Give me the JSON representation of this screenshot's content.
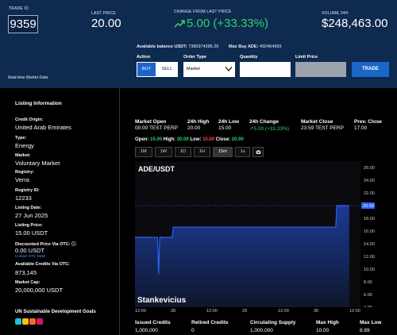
{
  "header": {
    "trade_id_label": "TRADE ID",
    "trade_id": "9359",
    "last_price_label": "LAST PRICE",
    "last_price": "20.00",
    "change_label": "CHANGE FROM LAST PRICE",
    "change_value": "5.00 (+33.33%)",
    "volume_label": "VOLUME 24H",
    "volume_value": "$248,463.00",
    "balance_label": "Available balance USDT:",
    "balance_value": "7386974385.26",
    "max_buy_label": "Max Buy ADE:",
    "max_buy_value": "492464959",
    "action_label": "Action",
    "buy_label": "BUY",
    "sell_label": "SELL",
    "order_type_label": "Order Type",
    "order_type_value": "Market",
    "quantity_label": "Quantity",
    "limit_price_label": "Limit Price",
    "trade_button": "TRADE",
    "realtime_label": "Real-time Market Data:",
    "accent_color": "#1b66c9",
    "positive_color": "#2fd16b"
  },
  "sidebar": {
    "title": "Listing Information",
    "credit_origin_label": "Credit Origin:",
    "credit_origin": "United Arab Emirates",
    "type_label": "Type:",
    "type": "Energy",
    "market_label": "Market:",
    "market": "Voluntary Market",
    "registry_label": "Registry:",
    "registry": "Verra",
    "registry_id_label": "Registry ID:",
    "registry_id": "12233",
    "listing_date_label": "Listing Date:",
    "listing_date": "27 Jun 2025",
    "listing_price_label": "Listing Price:",
    "listing_price": "15.00 USDT",
    "discounted_label": "Discounted Price Via OTC:",
    "discounted_value": "0.00 USDT",
    "otc_link": "Contact OTC Desk",
    "otc_credits_label": "Available Credits Via OTC:",
    "otc_credits": "873,145",
    "market_cap_label": "Market Cap:",
    "market_cap": "20,000,000 USDT",
    "sdg_title": "UN Sustainable Development Goals",
    "sdg_colors": [
      "#26bde2",
      "#fcc30b",
      "#fd6925",
      "#dd1367"
    ]
  },
  "market": {
    "open_label": "Market Open",
    "open_value": "00:00 TEST PERP",
    "high_label": "24h High",
    "high_value": "20.00",
    "low_label": "24h Low",
    "low_value": "15.00",
    "change_label": "24h Change",
    "change_value": "5.00 (+33.33%)",
    "close_label": "Market Close",
    "close_value": "23:59 TEST PERP",
    "prev_label": "Prev. Close",
    "prev_value": "17.00",
    "ohlc_open_label": "Open:",
    "ohlc_open": "15.00",
    "ohlc_high_label": "High:",
    "ohlc_high": "20.00",
    "ohlc_low_label": "Low:",
    "ohlc_low": "15.00",
    "ohlc_close_label": "Close:",
    "ohlc_close": "20.00",
    "timeframes": [
      "1M",
      "1W",
      "1D",
      "1H",
      "15m",
      "1s"
    ],
    "active_timeframe": "15m"
  },
  "chart_data": {
    "type": "area",
    "title": "ADE/USDT",
    "watermark": "Stankevicius",
    "x_ticks": [
      "12:00",
      "28",
      "12:00",
      "29",
      "12:00",
      "30",
      "12:00"
    ],
    "y_ticks": [
      "26.00",
      "24.00",
      "22.00",
      "20.00",
      "18.00",
      "16.00",
      "14.00",
      "12.00",
      "10.00",
      "8.00",
      "6.00",
      "4.00"
    ],
    "ylim": [
      4,
      27
    ],
    "last_price_marker": "20.00",
    "line_color": "#2962ff",
    "points": [
      {
        "x": 0.0,
        "y": 15.0
      },
      {
        "x": 0.1,
        "y": 15.0
      },
      {
        "x": 0.105,
        "y": 9.2
      },
      {
        "x": 0.11,
        "y": 15.0
      },
      {
        "x": 0.165,
        "y": 15.0
      },
      {
        "x": 0.17,
        "y": 16.6
      },
      {
        "x": 0.89,
        "y": 16.6
      },
      {
        "x": 0.895,
        "y": 20.0
      },
      {
        "x": 0.95,
        "y": 20.0
      }
    ]
  },
  "bottom_stats": {
    "issued_label": "Issued Credits",
    "issued_value": "1,000,000",
    "retired_label": "Retired Credits",
    "retired_value": "0",
    "supply_label": "Circulating Supply",
    "supply_value": "1,000,000",
    "max_high_label": "Max High",
    "max_high_value": "10.00",
    "max_low_label": "Max Low",
    "max_low_value": "8.89"
  }
}
